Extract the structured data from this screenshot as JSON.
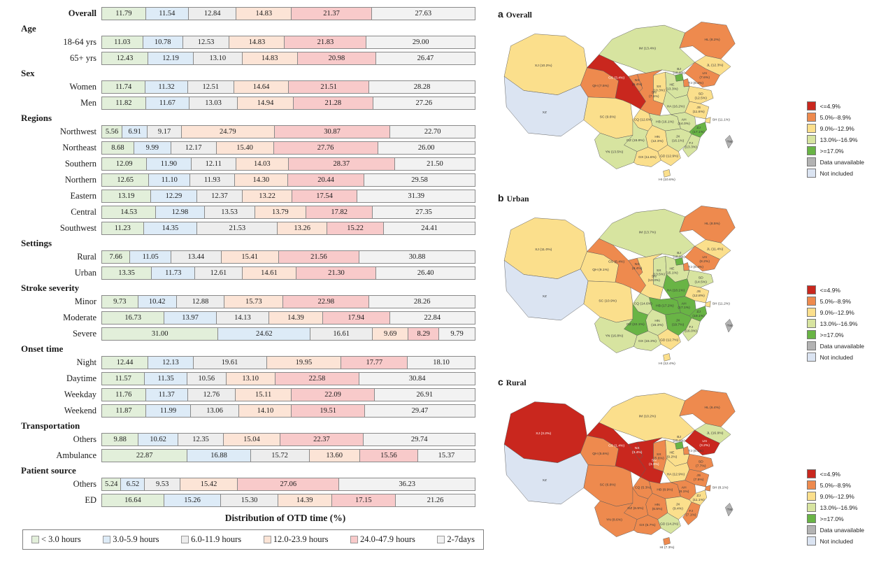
{
  "bar_panel_name": "otd-distribution-chart",
  "chart_data": [
    {
      "type": "bar",
      "orientation": "horizontal-stacked",
      "xlabel": "Distribution of OTD time (%)",
      "series_labels": [
        "< 3.0 hours",
        "3.0-5.9 hours",
        "6.0-11.9 hours",
        "12.0-23.9 hours",
        "24.0-47.9 hours",
        "2-7days"
      ],
      "colors": [
        "#e2efda",
        "#ddebf7",
        "#ededed",
        "#fce4d6",
        "#f8caca",
        "#f2f2f2"
      ],
      "xlim": [
        0,
        100
      ],
      "groups": [
        {
          "header": "",
          "rows": [
            {
              "label": "Overall",
              "bold": true,
              "values": [
                "11.79",
                "11.54",
                "12.84",
                "14.83",
                "21.37",
                "27.63"
              ]
            }
          ]
        },
        {
          "header": "Age",
          "rows": [
            {
              "label": "18-64 yrs",
              "values": [
                "11.03",
                "10.78",
                "12.53",
                "14.83",
                "21.83",
                "29.00"
              ]
            },
            {
              "label": "65+ yrs",
              "values": [
                "12.43",
                "12.19",
                "13.10",
                "14.83",
                "20.98",
                "26.47"
              ]
            }
          ]
        },
        {
          "header": "Sex",
          "rows": [
            {
              "label": "Women",
              "values": [
                "11.74",
                "11.32",
                "12.51",
                "14.64",
                "21.51",
                "28.28"
              ]
            },
            {
              "label": "Men",
              "values": [
                "11.82",
                "11.67",
                "13.03",
                "14.94",
                "21.28",
                "27.26"
              ]
            }
          ]
        },
        {
          "header": "Regions",
          "rows": [
            {
              "label": "Northwest",
              "values": [
                "5.56",
                "6.91",
                "9.17",
                "24.79",
                "30.87",
                "22.70"
              ]
            },
            {
              "label": "Northeast",
              "values": [
                "8.68",
                "9.99",
                "12.17",
                "15.40",
                "27.76",
                "26.00"
              ]
            },
            {
              "label": "Southern",
              "values": [
                "12.09",
                "11.90",
                "12.11",
                "14.03",
                "28.37",
                "21.50"
              ]
            },
            {
              "label": "Northern",
              "values": [
                "12.65",
                "11.10",
                "11.93",
                "14.30",
                "20.44",
                "29.58"
              ]
            },
            {
              "label": "Eastern",
              "values": [
                "13.19",
                "12.29",
                "12.37",
                "13.22",
                "17.54",
                "31.39"
              ]
            },
            {
              "label": "Central",
              "values": [
                "14.53",
                "12.98",
                "13.53",
                "13.79",
                "17.82",
                "27.35"
              ]
            },
            {
              "label": "Southwest",
              "values": [
                "11.23",
                "14.35",
                "21.53",
                "13.26",
                "15.22",
                "24.41"
              ]
            }
          ]
        },
        {
          "header": "Settings",
          "rows": [
            {
              "label": "Rural",
              "values": [
                "7.66",
                "11.05",
                "13.44",
                "15.41",
                "21.56",
                "30.88"
              ]
            },
            {
              "label": "Urban",
              "values": [
                "13.35",
                "11.73",
                "12.61",
                "14.61",
                "21.30",
                "26.40"
              ]
            }
          ]
        },
        {
          "header": "Stroke severity",
          "rows": [
            {
              "label": "Minor",
              "values": [
                "9.73",
                "10.42",
                "12.88",
                "15.73",
                "22.98",
                "28.26"
              ]
            },
            {
              "label": "Moderate",
              "values": [
                "16.73",
                "13.97",
                "14.13",
                "14.39",
                "17.94",
                "22.84"
              ]
            },
            {
              "label": "Severe",
              "values": [
                "31.00",
                "24.62",
                "16.61",
                "9.69",
                "8.29",
                "9.79"
              ]
            }
          ]
        },
        {
          "header": "Onset time",
          "rows": [
            {
              "label": "Night",
              "values": [
                "12.44",
                "12.13",
                "19.61",
                "19.95",
                "17.77",
                "18.10"
              ]
            },
            {
              "label": "Daytime",
              "values": [
                "11.57",
                "11.35",
                "10.56",
                "13.10",
                "22.58",
                "30.84"
              ]
            },
            {
              "label": "Weekday",
              "values": [
                "11.76",
                "11.37",
                "12.76",
                "15.11",
                "22.09",
                "26.91"
              ]
            },
            {
              "label": "Weekend",
              "values": [
                "11.87",
                "11.99",
                "13.06",
                "14.10",
                "19.51",
                "29.47"
              ]
            }
          ]
        },
        {
          "header": "Transportation",
          "rows": [
            {
              "label": "Others",
              "values": [
                "9.88",
                "10.62",
                "12.35",
                "15.04",
                "22.37",
                "29.74"
              ]
            },
            {
              "label": "Ambulance",
              "values": [
                "22.87",
                "16.88",
                "15.72",
                "13.60",
                "15.56",
                "15.37"
              ]
            }
          ]
        },
        {
          "header": "Patient source",
          "rows": [
            {
              "label": "Others",
              "values": [
                "5.24",
                "6.52",
                "9.53",
                "15.42",
                "27.06",
                "36.23"
              ]
            },
            {
              "label": "ED",
              "values": [
                "16.64",
                "15.26",
                "15.30",
                "14.39",
                "17.15",
                "21.26"
              ]
            }
          ]
        }
      ]
    },
    {
      "type": "choropleth",
      "panel_letter": "a",
      "title": "Overall",
      "provinces": {
        "XJ": [
          "10.2%",
          "b3"
        ],
        "XZ": [
          null,
          "ni"
        ],
        "QH": [
          "7.5%",
          "b2"
        ],
        "GS": [
          "3.4%",
          "b1"
        ],
        "NX": [
          "5.4%",
          "b2"
        ],
        "SN": [
          "7.1%",
          "b2"
        ],
        "IM": [
          "13.4%",
          "b4"
        ],
        "HL": [
          "8.2%",
          "b2"
        ],
        "JL": [
          "12.3%",
          "b3"
        ],
        "LN": [
          "7.6%",
          "b2"
        ],
        "BJ": [
          "18.6%",
          "b5"
        ],
        "TJ": [
          "8.2%",
          "b2"
        ],
        "HE": [
          "13.3%",
          "b4"
        ],
        "SX": [
          "10.3%",
          "b3"
        ],
        "SD": [
          "12.5%",
          "b3"
        ],
        "HA": [
          "16.2%",
          "b4"
        ],
        "JS": [
          "11.6%",
          "b3"
        ],
        "SH": [
          "11.1%",
          "b3"
        ],
        "AH": [
          "14.0%",
          "b4"
        ],
        "ZJ": [
          "17.1%",
          "b5"
        ],
        "HB": [
          "16.1%",
          "b4"
        ],
        "JX": [
          "16.1%",
          "b4"
        ],
        "HN": [
          "12.3%",
          "b3"
        ],
        "FJ": [
          "13.3%",
          "b4"
        ],
        "GZ": [
          "15.9%",
          "b4"
        ],
        "CQ": [
          "12.6%",
          "b3"
        ],
        "SC": [
          "9.6%",
          "b3"
        ],
        "YN": [
          "13.5%",
          "b4"
        ],
        "GX": [
          "11.6%",
          "b3"
        ],
        "GD": [
          "12.9%",
          "b3"
        ],
        "HI": [
          "10.6%",
          "b3"
        ],
        "TW": [
          null,
          "na"
        ]
      }
    },
    {
      "type": "choropleth",
      "panel_letter": "b",
      "title": "Urban",
      "provinces": {
        "XJ": [
          "11.0%",
          "b3"
        ],
        "XZ": [
          null,
          "ni"
        ],
        "QH": [
          "9.1%",
          "b3"
        ],
        "GS": [
          "6.4%",
          "b2"
        ],
        "NX": [
          "8.4%",
          "b2"
        ],
        "SN": [
          "10.3%",
          "b3"
        ],
        "IM": [
          "13.7%",
          "b4"
        ],
        "HL": [
          "8.5%",
          "b2"
        ],
        "JL": [
          "11.4%",
          "b3"
        ],
        "LN": [
          "8.2%",
          "b2"
        ],
        "BJ": [
          "18.0%",
          "b5"
        ],
        "TJ": [
          "8.4%",
          "b2"
        ],
        "HE": [
          "15.1%",
          "b4"
        ],
        "SX": [
          "13.5%",
          "b4"
        ],
        "SD": [
          "14.5%",
          "b4"
        ],
        "HA": [
          "18.1%",
          "b5"
        ],
        "JS": [
          "12.8%",
          "b3"
        ],
        "SH": [
          "11.2%",
          "b3"
        ],
        "AH": [
          "17.1%",
          "b5"
        ],
        "ZJ": [
          "19.1%",
          "b5"
        ],
        "HB": [
          "17.2%",
          "b5"
        ],
        "JX": [
          "19.7%",
          "b5"
        ],
        "HN": [
          "15.3%",
          "b4"
        ],
        "FJ": [
          "16.0%",
          "b4"
        ],
        "GZ": [
          "22.1%",
          "b5"
        ],
        "CQ": [
          "14.6%",
          "b4"
        ],
        "SC": [
          "10.9%",
          "b3"
        ],
        "YN": [
          "16.8%",
          "b4"
        ],
        "GX": [
          "15.3%",
          "b4"
        ],
        "GD": [
          "12.7%",
          "b3"
        ],
        "HI": [
          "12.4%",
          "b3"
        ],
        "TW": [
          null,
          "na"
        ]
      }
    },
    {
      "type": "choropleth",
      "panel_letter": "c",
      "title": "Rural",
      "provinces": {
        "XJ": [
          "3.2%",
          "b1"
        ],
        "XZ": [
          null,
          "ni"
        ],
        "QH": [
          "5.6%",
          "b2"
        ],
        "GS": [
          "1.4%",
          "b1"
        ],
        "NX": [
          "3.4%",
          "b1"
        ],
        "SN": [
          "3.3%",
          "b1"
        ],
        "IM": [
          "10.2%",
          "b3"
        ],
        "HL": [
          "6.4%",
          "b2"
        ],
        "JL": [
          "16.9%",
          "b4"
        ],
        "LN": [
          "3.2%",
          "b1"
        ],
        "BJ": [
          "25.0%",
          "b5"
        ],
        "TJ": [
          "6.1%",
          "b2"
        ],
        "HE": [
          "9.2%",
          "b3"
        ],
        "SX": [
          "5.6%",
          "b2"
        ],
        "SD": [
          "7.7%",
          "b2"
        ],
        "HA": [
          "12.9%",
          "b3"
        ],
        "JS": [
          "7.5%",
          "b2"
        ],
        "SH": [
          "8.1%",
          "b2"
        ],
        "AH": [
          "8.1%",
          "b2"
        ],
        "ZJ": [
          "11.1%",
          "b3"
        ],
        "HB": [
          "8.9%",
          "b2"
        ],
        "JX": [
          "9.4%",
          "b3"
        ],
        "HN": [
          "6.5%",
          "b2"
        ],
        "FJ": [
          "7.1%",
          "b2"
        ],
        "GZ": [
          "6.5%",
          "b2"
        ],
        "CQ": [
          "5.3%",
          "b2"
        ],
        "SC": [
          "6.8%",
          "b2"
        ],
        "YN": [
          "8.6%",
          "b2"
        ],
        "GX": [
          "5.7%",
          "b2"
        ],
        "GD": [
          "14.2%",
          "b4"
        ],
        "HI": [
          "7.3%",
          "b2"
        ],
        "TW": [
          null,
          "na"
        ]
      }
    }
  ],
  "map_legend": {
    "colors": {
      "b1": "#c9271e",
      "b2": "#ee8a4e",
      "b3": "#fbdf8c",
      "b4": "#d7e4a0",
      "b5": "#69b445",
      "na": "#b3b3b3",
      "ni": "#dbe4f2"
    },
    "items": [
      {
        "label": "<=4.9%",
        "band": "b1"
      },
      {
        "label": "5.0%--8.9%",
        "band": "b2"
      },
      {
        "label": "9.0%--12.9%",
        "band": "b3"
      },
      {
        "label": "13.0%--16.9%",
        "band": "b4"
      },
      {
        "label": ">=17.0%",
        "band": "b5"
      },
      {
        "label": "Data unavailable",
        "band": "na"
      },
      {
        "label": "Not included",
        "band": "ni"
      }
    ]
  }
}
